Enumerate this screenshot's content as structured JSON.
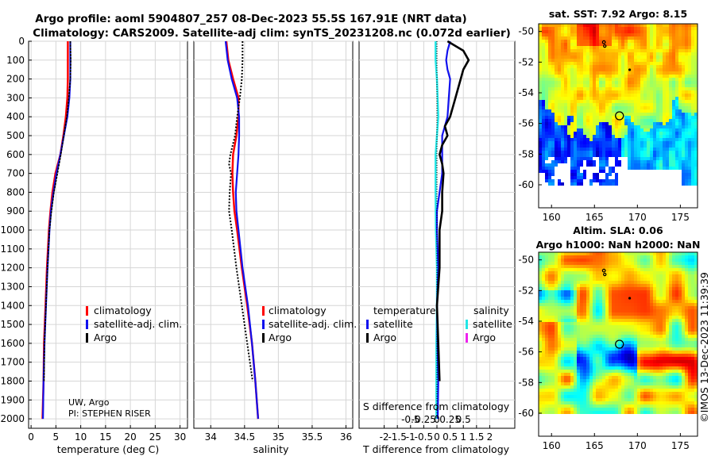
{
  "title_line1": "Argo profile: aoml 5904807_257 08-Dec-2023 55.5S 167.91E (NRT data)",
  "title_line2": "Climatology: CARS2009. Satellite-adj clim: synTS_20231208.nc (0.072d earlier)",
  "credit_line1": "UW, Argo",
  "credit_line2": "PI: STEPHEN RISER",
  "watermark": "©IMOS 13-Dec-2023 11:39:39",
  "colors": {
    "climatology": "#ff0000",
    "satellite": "#1010ee",
    "argo": "#000000",
    "cyan": "#22e6e6",
    "magenta": "#ee22ee"
  },
  "chart_data": [
    {
      "name": "temperature-panel",
      "type": "line",
      "xlabel": "temperature (deg C)",
      "ylabel": "",
      "xlim": [
        -0.5,
        31.5
      ],
      "ylim": [
        2050,
        0
      ],
      "xticks": [
        "0",
        "5",
        "10",
        "15",
        "20",
        "25",
        "30"
      ],
      "xtick_values": [
        0,
        5,
        10,
        15,
        20,
        25,
        30
      ],
      "yticks": [
        "0",
        "100",
        "200",
        "300",
        "400",
        "500",
        "600",
        "700",
        "800",
        "900",
        "1000",
        "1100",
        "1200",
        "1300",
        "1400",
        "1500",
        "1600",
        "1700",
        "1800",
        "1900",
        "2000"
      ],
      "ytick_values": [
        0,
        100,
        200,
        300,
        400,
        500,
        600,
        700,
        800,
        900,
        1000,
        1100,
        1200,
        1300,
        1400,
        1500,
        1600,
        1700,
        1800,
        1900,
        2000
      ],
      "legend": [
        "climatology",
        "satellite-adj. clim.",
        "Argo"
      ],
      "series": [
        {
          "name": "climatology",
          "color": "#ff0000",
          "width": 2.5,
          "depth": [
            0,
            100,
            200,
            300,
            400,
            500,
            600,
            700,
            800,
            900,
            1000,
            1200,
            1400,
            1600,
            1800,
            2000
          ],
          "values": [
            7.4,
            7.4,
            7.4,
            7.3,
            7.0,
            6.5,
            5.9,
            4.9,
            4.3,
            3.9,
            3.6,
            3.2,
            2.9,
            2.6,
            2.5,
            2.3
          ]
        },
        {
          "name": "satellite-adj. clim.",
          "color": "#1010ee",
          "width": 2.2,
          "depth": [
            0,
            100,
            200,
            300,
            400,
            500,
            600,
            700,
            800,
            900,
            1000,
            1200,
            1400,
            1600,
            1800,
            2000
          ],
          "values": [
            7.9,
            7.9,
            7.9,
            7.7,
            7.3,
            6.6,
            5.9,
            5.1,
            4.5,
            4.0,
            3.7,
            3.3,
            3.0,
            2.7,
            2.5,
            2.4
          ]
        },
        {
          "name": "Argo",
          "color": "#000000",
          "width": 1.6,
          "dash": "3,1",
          "depth": [
            0,
            100,
            200,
            300,
            400,
            500,
            600,
            700,
            800,
            900,
            1000,
            1200,
            1400,
            1600,
            1800
          ],
          "values": [
            7.9,
            8.0,
            7.9,
            7.6,
            7.2,
            6.6,
            6.0,
            5.3,
            4.6,
            4.1,
            3.7,
            3.3,
            3.0,
            2.7,
            2.6
          ]
        }
      ]
    },
    {
      "name": "salinity-panel",
      "type": "line",
      "xlabel": "salinity",
      "ylabel": "",
      "xlim": [
        33.75,
        36.1
      ],
      "ylim": [
        2050,
        0
      ],
      "xticks": [
        "34",
        "34.5",
        "35",
        "35.5",
        "36"
      ],
      "xtick_values": [
        34,
        34.5,
        35,
        35.5,
        36
      ],
      "legend": [
        "climatology",
        "satellite-adj. clim.",
        "Argo"
      ],
      "series": [
        {
          "name": "climatology",
          "color": "#ff0000",
          "width": 2.5,
          "depth": [
            0,
            100,
            200,
            300,
            400,
            500,
            600,
            700,
            800,
            900,
            1000,
            1200,
            1400,
            1600,
            1800,
            2000
          ],
          "values": [
            34.23,
            34.26,
            34.33,
            34.41,
            34.41,
            34.38,
            34.33,
            34.32,
            34.33,
            34.35,
            34.39,
            34.46,
            34.54,
            34.61,
            34.66,
            34.7
          ]
        },
        {
          "name": "satellite-adj. clim.",
          "color": "#1010ee",
          "width": 2.2,
          "depth": [
            0,
            100,
            200,
            300,
            400,
            500,
            600,
            700,
            800,
            900,
            1000,
            1200,
            1400,
            1600,
            1800,
            2000
          ],
          "values": [
            34.22,
            34.25,
            34.31,
            34.39,
            34.42,
            34.42,
            34.41,
            34.39,
            34.37,
            34.38,
            34.41,
            34.47,
            34.55,
            34.61,
            34.66,
            34.7
          ]
        },
        {
          "name": "Argo",
          "color": "#000000",
          "width": 2,
          "dash": "2,2",
          "depth": [
            0,
            100,
            200,
            300,
            400,
            500,
            600,
            650,
            700,
            800,
            900,
            1000,
            1200,
            1400,
            1600,
            1800
          ],
          "values": [
            34.47,
            34.47,
            34.46,
            34.43,
            34.39,
            34.36,
            34.29,
            34.27,
            34.3,
            34.28,
            34.27,
            34.31,
            34.38,
            34.46,
            34.54,
            34.62
          ]
        }
      ]
    },
    {
      "name": "difference-panel",
      "type": "line",
      "xlabel": "T difference from climatology",
      "top_label": "S difference from climatology",
      "xlim": [
        -2.95,
        2.95
      ],
      "ylim": [
        2050,
        0
      ],
      "xticks": [
        "-2",
        "-1.5",
        "-1",
        "-0.5",
        "0",
        "0.5",
        "1",
        "1.5",
        "2"
      ],
      "xtick_values": [
        -2,
        -1.5,
        -1,
        -0.5,
        0,
        0.5,
        1,
        1.5,
        2
      ],
      "top_ticks": [
        "-0.5",
        "-0.25",
        "0",
        "0.25",
        "0.5"
      ],
      "top_tick_values": [
        -0.5,
        -0.25,
        0,
        0.25,
        0.5
      ],
      "legend_left_title": "temperature",
      "legend_right_title": "salinity",
      "legend_left": [
        "satellite",
        "Argo"
      ],
      "legend_right": [
        "satellite",
        "Argo"
      ],
      "series": [
        {
          "name": "S satellite",
          "color": "#22e6e6",
          "width": 2.5,
          "depth": [
            0,
            100,
            200,
            400,
            600,
            800,
            1000,
            1200,
            1400,
            1600,
            1800,
            2000
          ],
          "values": [
            -0.05,
            -0.05,
            0.0,
            0.05,
            -0.05,
            -0.05,
            -0.04,
            0.0,
            0.0,
            -0.02,
            -0.02,
            -0.02
          ]
        },
        {
          "name": "T satellite",
          "color": "#1010ee",
          "width": 2.2,
          "depth": [
            0,
            50,
            100,
            150,
            200,
            300,
            400,
            500,
            600,
            700,
            800,
            900,
            1000,
            1200,
            1400,
            1600,
            1800,
            2000
          ],
          "values": [
            0.5,
            0.4,
            0.35,
            0.4,
            0.5,
            0.45,
            0.4,
            0.2,
            0.2,
            0.2,
            0.1,
            0.0,
            0.0,
            0.05,
            0.0,
            0.02,
            0.05,
            0.03
          ]
        },
        {
          "name": "T Argo",
          "color": "#000000",
          "width": 2.6,
          "depth": [
            0,
            50,
            100,
            150,
            200,
            300,
            400,
            450,
            500,
            550,
            600,
            650,
            700,
            800,
            900,
            1000,
            1200,
            1400,
            1600,
            1800
          ],
          "values": [
            0.4,
            1.0,
            1.2,
            1.0,
            0.9,
            0.7,
            0.5,
            0.3,
            0.4,
            0.2,
            0.1,
            0.2,
            0.25,
            0.2,
            0.2,
            0.1,
            0.1,
            0.0,
            0.05,
            0.1
          ]
        },
        {
          "name": "S Argo",
          "color": "#000000",
          "width": 1,
          "dash": "1,2",
          "depth": [
            0,
            2000
          ],
          "values": [
            0.0,
            0.0
          ]
        }
      ]
    },
    {
      "name": "sst-map",
      "type": "heatmap",
      "title": "sat. SST: 7.92 Argo: 8.15",
      "xlim": [
        158.5,
        177
      ],
      "ylim": [
        -61.5,
        -49.5
      ],
      "xticks": [
        "160",
        "165",
        "170",
        "175"
      ],
      "xtick_values": [
        160,
        165,
        170,
        175
      ],
      "yticks": [
        "-50",
        "-52",
        "-54",
        "-56",
        "-58",
        "-60"
      ],
      "ytick_values": [
        -50,
        -52,
        -54,
        -56,
        -58,
        -60
      ]
    },
    {
      "name": "sla-map",
      "type": "heatmap",
      "title_line1": "Altim. SLA: 0.06",
      "title_line2": "Argo h1000: NaN h2000: NaN",
      "xlim": [
        158.5,
        177
      ],
      "ylim": [
        -61.5,
        -49.5
      ],
      "xticks": [
        "160",
        "165",
        "170",
        "175"
      ],
      "xtick_values": [
        160,
        165,
        170,
        175
      ],
      "yticks": [
        "-50",
        "-52",
        "-54",
        "-56",
        "-58",
        "-60"
      ],
      "ytick_values": [
        -50,
        -52,
        -54,
        -56,
        -58,
        -60
      ]
    }
  ]
}
